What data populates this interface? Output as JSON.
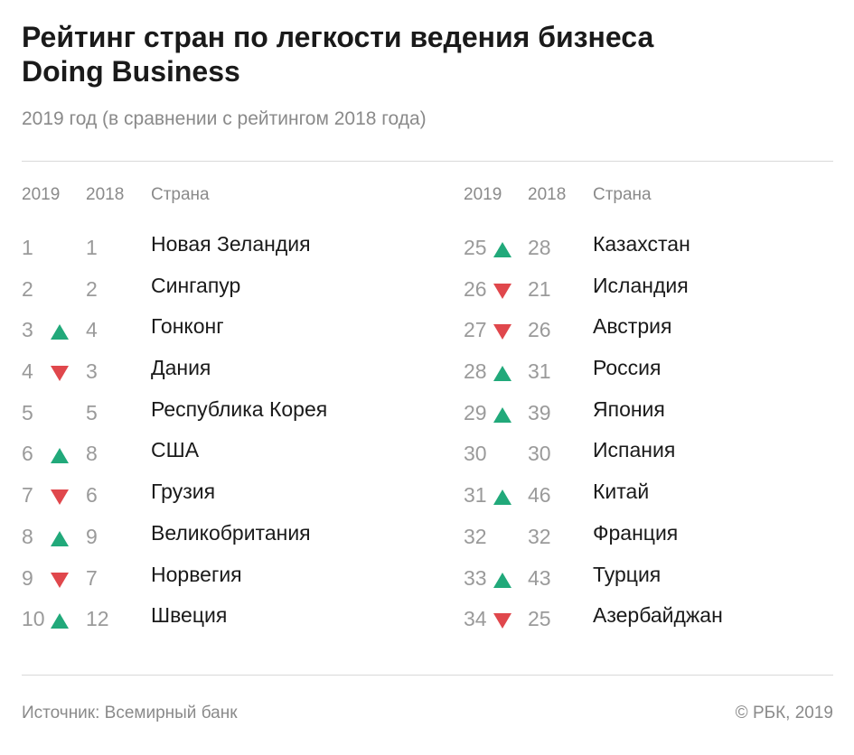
{
  "header": {
    "title_line1": "Рейтинг стран по легкости ведения бизнеса",
    "title_line2": "Doing Business",
    "subtitle": "2019 год (в сравнении с рейтингом 2018 года)"
  },
  "columns": {
    "rank_2019": "2019",
    "rank_2018": "2018",
    "country": "Страна"
  },
  "colors": {
    "up": "#21a97a",
    "down": "#e0474c"
  },
  "chart_data": {
    "type": "table",
    "title": "Рейтинг стран по легкости ведения бизнеса Doing Business",
    "subtitle": "2019 год (в сравнении с рейтингом 2018 года)",
    "columns": [
      "2019",
      "2018",
      "Страна"
    ],
    "rows": [
      {
        "rank_2019": "1",
        "rank_2018": "1",
        "country": "Новая Зеландия",
        "trend": "none"
      },
      {
        "rank_2019": "2",
        "rank_2018": "2",
        "country": "Сингапур",
        "trend": "none"
      },
      {
        "rank_2019": "3",
        "rank_2018": "4",
        "country": "Гонконг",
        "trend": "up"
      },
      {
        "rank_2019": "4",
        "rank_2018": "3",
        "country": "Дания",
        "trend": "down"
      },
      {
        "rank_2019": "5",
        "rank_2018": "5",
        "country": "Республика Корея",
        "trend": "none"
      },
      {
        "rank_2019": "6",
        "rank_2018": "8",
        "country": "США",
        "trend": "up"
      },
      {
        "rank_2019": "7",
        "rank_2018": "6",
        "country": "Грузия",
        "trend": "down"
      },
      {
        "rank_2019": "8",
        "rank_2018": "9",
        "country": "Великобритания",
        "trend": "up"
      },
      {
        "rank_2019": "9",
        "rank_2018": "7",
        "country": "Норвегия",
        "trend": "down"
      },
      {
        "rank_2019": "10",
        "rank_2018": "12",
        "country": "Швеция",
        "trend": "up"
      },
      {
        "rank_2019": "25",
        "rank_2018": "28",
        "country": "Казахстан",
        "trend": "up"
      },
      {
        "rank_2019": "26",
        "rank_2018": "21",
        "country": "Исландия",
        "trend": "down"
      },
      {
        "rank_2019": "27",
        "rank_2018": "26",
        "country": "Австрия",
        "trend": "down"
      },
      {
        "rank_2019": "28",
        "rank_2018": "31",
        "country": "Россия",
        "trend": "up"
      },
      {
        "rank_2019": "29",
        "rank_2018": "39",
        "country": "Япония",
        "trend": "up"
      },
      {
        "rank_2019": "30",
        "rank_2018": "30",
        "country": "Испания",
        "trend": "none"
      },
      {
        "rank_2019": "31",
        "rank_2018": "46",
        "country": "Китай",
        "trend": "up"
      },
      {
        "rank_2019": "32",
        "rank_2018": "32",
        "country": "Франция",
        "trend": "none"
      },
      {
        "rank_2019": "33",
        "rank_2018": "43",
        "country": "Турция",
        "trend": "up"
      },
      {
        "rank_2019": "34",
        "rank_2018": "25",
        "country": "Азербайджан",
        "trend": "down"
      }
    ]
  },
  "footer": {
    "source": "Источник: Всемирный банк",
    "copyright": "© РБК, 2019"
  }
}
